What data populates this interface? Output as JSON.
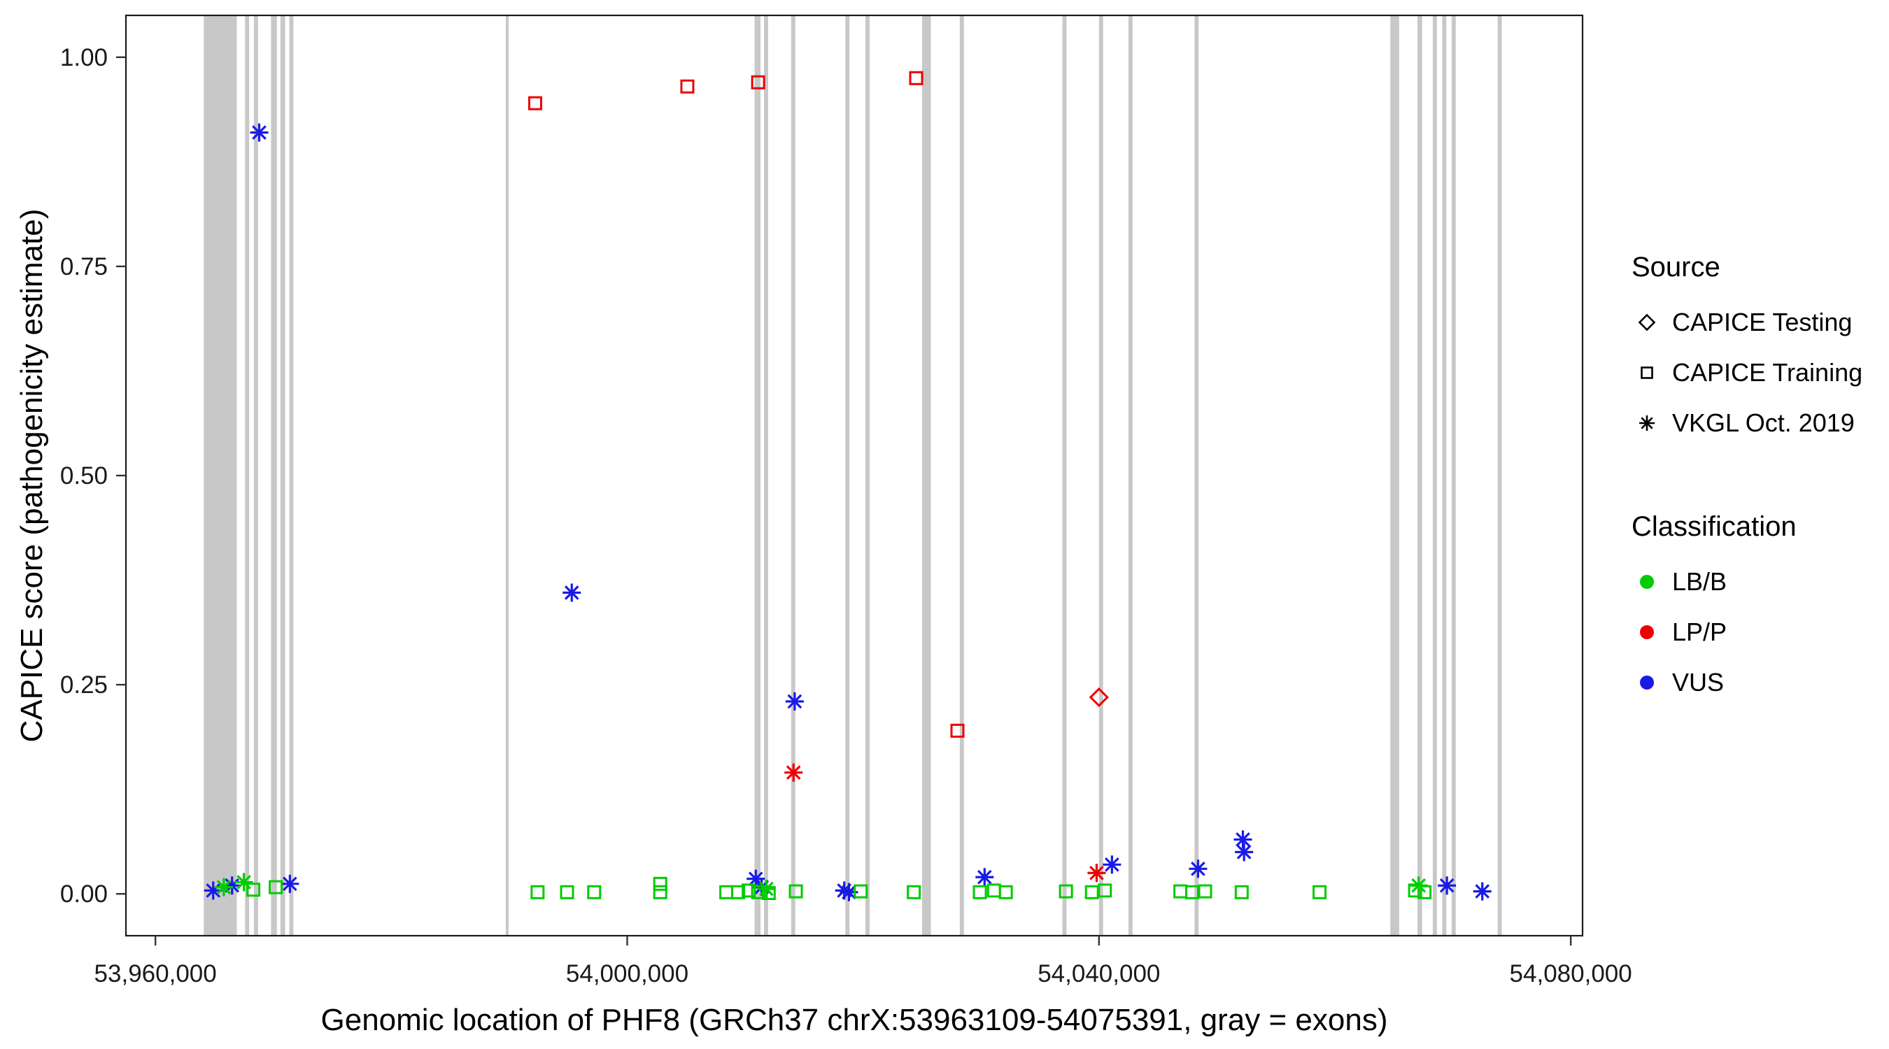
{
  "legend": {
    "source_title": "Source",
    "source_items": [
      {
        "label": "CAPICE Testing",
        "shape": "diamond"
      },
      {
        "label": "CAPICE Training",
        "shape": "square"
      },
      {
        "label": "VKGL Oct. 2019",
        "shape": "asterisk"
      }
    ],
    "classification_title": "Classification",
    "classification_items": [
      {
        "label": "LB/B"
      },
      {
        "label": "LP/P"
      },
      {
        "label": "VUS"
      }
    ]
  },
  "chart_data": {
    "type": "scatter",
    "title": "",
    "xlabel": "Genomic location of PHF8 (GRCh37 chrX:53963109-54075391, gray = exons)",
    "ylabel": "CAPICE score (pathogenicity estimate)",
    "xlim": [
      53957500,
      54081000
    ],
    "ylim": [
      -0.05,
      1.05
    ],
    "grid": false,
    "legend_position": "right",
    "x_ticks": [
      {
        "value": 53960000,
        "label": "53,960,000"
      },
      {
        "value": 54000000,
        "label": "54,000,000"
      },
      {
        "value": 54040000,
        "label": "54,040,000"
      },
      {
        "value": 54080000,
        "label": "54,080,000"
      }
    ],
    "y_ticks": [
      {
        "value": 0.0,
        "label": "0.00"
      },
      {
        "value": 0.25,
        "label": "0.25"
      },
      {
        "value": 0.5,
        "label": "0.50"
      },
      {
        "value": 0.75,
        "label": "0.75"
      },
      {
        "value": 1.0,
        "label": "1.00"
      }
    ],
    "exon_color": "#C8C8C8",
    "shape_by_source": {
      "CAPICE Testing": "diamond",
      "CAPICE Training": "square",
      "VKGL Oct. 2019": "asterisk"
    },
    "color_by_classification": {
      "LB/B": "#00CC00",
      "LP/P": "#EE0000",
      "VUS": "#1A1AE6"
    },
    "exons": [
      [
        53964100,
        53966900
      ],
      [
        53967600,
        53967950
      ],
      [
        53968350,
        53968700
      ],
      [
        53969800,
        53970300
      ],
      [
        53970600,
        53971000
      ],
      [
        53971350,
        53971700
      ],
      [
        53989700,
        53989950
      ],
      [
        54010800,
        54011300
      ],
      [
        54011600,
        54011950
      ],
      [
        54013900,
        54014250
      ],
      [
        54018500,
        54018850
      ],
      [
        54020200,
        54020550
      ],
      [
        54025000,
        54025750
      ],
      [
        54028200,
        54028550
      ],
      [
        54036900,
        54037250
      ],
      [
        54040000,
        54040350
      ],
      [
        54042500,
        54042850
      ],
      [
        54048100,
        54048450
      ],
      [
        54064700,
        54065450
      ],
      [
        54067000,
        54067400
      ],
      [
        54068300,
        54068650
      ],
      [
        54069100,
        54069450
      ],
      [
        54069900,
        54070250
      ],
      [
        54073800,
        54074150
      ]
    ],
    "points": [
      {
        "x": 53992200,
        "y": 0.945,
        "source": "CAPICE Training",
        "classification": "LP/P"
      },
      {
        "x": 54005100,
        "y": 0.965,
        "source": "CAPICE Training",
        "classification": "LP/P"
      },
      {
        "x": 54011100,
        "y": 0.97,
        "source": "CAPICE Training",
        "classification": "LP/P"
      },
      {
        "x": 54024500,
        "y": 0.975,
        "source": "CAPICE Training",
        "classification": "LP/P"
      },
      {
        "x": 54028000,
        "y": 0.195,
        "source": "CAPICE Training",
        "classification": "LP/P"
      },
      {
        "x": 54040000,
        "y": 0.235,
        "source": "CAPICE Testing",
        "classification": "LP/P"
      },
      {
        "x": 54014100,
        "y": 0.145,
        "source": "VKGL Oct. 2019",
        "classification": "LP/P"
      },
      {
        "x": 54039800,
        "y": 0.025,
        "source": "VKGL Oct. 2019",
        "classification": "LP/P"
      },
      {
        "x": 53968800,
        "y": 0.91,
        "source": "VKGL Oct. 2019",
        "classification": "VUS"
      },
      {
        "x": 53995300,
        "y": 0.36,
        "source": "VKGL Oct. 2019",
        "classification": "VUS"
      },
      {
        "x": 54014200,
        "y": 0.23,
        "source": "VKGL Oct. 2019",
        "classification": "VUS"
      },
      {
        "x": 53964900,
        "y": 0.004,
        "source": "VKGL Oct. 2019",
        "classification": "VUS"
      },
      {
        "x": 53966500,
        "y": 0.01,
        "source": "VKGL Oct. 2019",
        "classification": "VUS"
      },
      {
        "x": 53971400,
        "y": 0.012,
        "source": "VKGL Oct. 2019",
        "classification": "VUS"
      },
      {
        "x": 54010900,
        "y": 0.018,
        "source": "VKGL Oct. 2019",
        "classification": "VUS"
      },
      {
        "x": 54011400,
        "y": 0.008,
        "source": "VKGL Oct. 2019",
        "classification": "VUS"
      },
      {
        "x": 54018400,
        "y": 0.004,
        "source": "VKGL Oct. 2019",
        "classification": "VUS"
      },
      {
        "x": 54018800,
        "y": 0.002,
        "source": "VKGL Oct. 2019",
        "classification": "VUS"
      },
      {
        "x": 54030300,
        "y": 0.02,
        "source": "VKGL Oct. 2019",
        "classification": "VUS"
      },
      {
        "x": 54041100,
        "y": 0.035,
        "source": "VKGL Oct. 2019",
        "classification": "VUS"
      },
      {
        "x": 54048400,
        "y": 0.03,
        "source": "VKGL Oct. 2019",
        "classification": "VUS"
      },
      {
        "x": 54052200,
        "y": 0.065,
        "source": "VKGL Oct. 2019",
        "classification": "VUS"
      },
      {
        "x": 54052300,
        "y": 0.05,
        "source": "VKGL Oct. 2019",
        "classification": "VUS"
      },
      {
        "x": 54069500,
        "y": 0.01,
        "source": "VKGL Oct. 2019",
        "classification": "VUS"
      },
      {
        "x": 54072500,
        "y": 0.003,
        "source": "VKGL Oct. 2019",
        "classification": "VUS"
      },
      {
        "x": 53965800,
        "y": 0.008,
        "source": "VKGL Oct. 2019",
        "classification": "LB/B"
      },
      {
        "x": 53967500,
        "y": 0.014,
        "source": "VKGL Oct. 2019",
        "classification": "LB/B"
      },
      {
        "x": 54011800,
        "y": 0.006,
        "source": "VKGL Oct. 2019",
        "classification": "LB/B"
      },
      {
        "x": 54067100,
        "y": 0.01,
        "source": "VKGL Oct. 2019",
        "classification": "LB/B"
      },
      {
        "x": 53968300,
        "y": 0.005,
        "source": "CAPICE Training",
        "classification": "LB/B"
      },
      {
        "x": 53970200,
        "y": 0.008,
        "source": "CAPICE Training",
        "classification": "LB/B"
      },
      {
        "x": 53992400,
        "y": 0.002,
        "source": "CAPICE Training",
        "classification": "LB/B"
      },
      {
        "x": 53994900,
        "y": 0.002,
        "source": "CAPICE Training",
        "classification": "LB/B"
      },
      {
        "x": 53997200,
        "y": 0.002,
        "source": "CAPICE Training",
        "classification": "LB/B"
      },
      {
        "x": 54002800,
        "y": 0.012,
        "source": "CAPICE Training",
        "classification": "LB/B"
      },
      {
        "x": 54002800,
        "y": 0.002,
        "source": "CAPICE Training",
        "classification": "LB/B"
      },
      {
        "x": 54008400,
        "y": 0.002,
        "source": "CAPICE Training",
        "classification": "LB/B"
      },
      {
        "x": 54009400,
        "y": 0.002,
        "source": "CAPICE Training",
        "classification": "LB/B"
      },
      {
        "x": 54010300,
        "y": 0.004,
        "source": "CAPICE Training",
        "classification": "LB/B"
      },
      {
        "x": 54011100,
        "y": 0.002,
        "source": "CAPICE Training",
        "classification": "LB/B"
      },
      {
        "x": 54012000,
        "y": 0.001,
        "source": "CAPICE Training",
        "classification": "LB/B"
      },
      {
        "x": 54014300,
        "y": 0.003,
        "source": "CAPICE Training",
        "classification": "LB/B"
      },
      {
        "x": 54019800,
        "y": 0.003,
        "source": "CAPICE Training",
        "classification": "LB/B"
      },
      {
        "x": 54024300,
        "y": 0.002,
        "source": "CAPICE Training",
        "classification": "LB/B"
      },
      {
        "x": 54029900,
        "y": 0.002,
        "source": "CAPICE Training",
        "classification": "LB/B"
      },
      {
        "x": 54031100,
        "y": 0.004,
        "source": "CAPICE Training",
        "classification": "LB/B"
      },
      {
        "x": 54032100,
        "y": 0.002,
        "source": "CAPICE Training",
        "classification": "LB/B"
      },
      {
        "x": 54037200,
        "y": 0.003,
        "source": "CAPICE Training",
        "classification": "LB/B"
      },
      {
        "x": 54039400,
        "y": 0.002,
        "source": "CAPICE Training",
        "classification": "LB/B"
      },
      {
        "x": 54040500,
        "y": 0.004,
        "source": "CAPICE Training",
        "classification": "LB/B"
      },
      {
        "x": 54046900,
        "y": 0.003,
        "source": "CAPICE Training",
        "classification": "LB/B"
      },
      {
        "x": 54047900,
        "y": 0.002,
        "source": "CAPICE Training",
        "classification": "LB/B"
      },
      {
        "x": 54049000,
        "y": 0.003,
        "source": "CAPICE Training",
        "classification": "LB/B"
      },
      {
        "x": 54052100,
        "y": 0.002,
        "source": "CAPICE Training",
        "classification": "LB/B"
      },
      {
        "x": 54058700,
        "y": 0.002,
        "source": "CAPICE Training",
        "classification": "LB/B"
      },
      {
        "x": 54066800,
        "y": 0.004,
        "source": "CAPICE Training",
        "classification": "LB/B"
      },
      {
        "x": 54067600,
        "y": 0.002,
        "source": "CAPICE Training",
        "classification": "LB/B"
      }
    ]
  }
}
